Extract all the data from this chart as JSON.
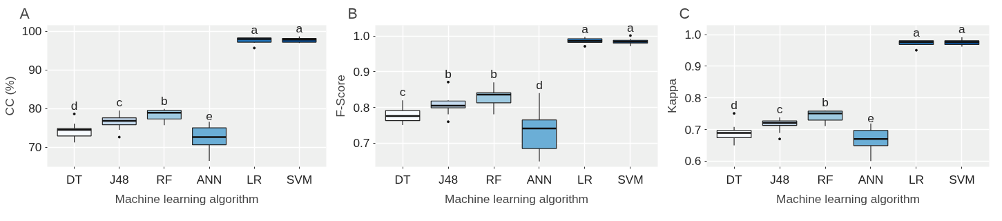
{
  "chart_data": [
    {
      "type": "box",
      "title": "A",
      "xlabel": "Machine learning algorithm",
      "ylabel": "CC (%)",
      "categories": [
        "DT",
        "J48",
        "RF",
        "ANN",
        "LR",
        "SVM"
      ],
      "colors": [
        "#f7fbff",
        "#c6dbef",
        "#9ecae1",
        "#6baed6",
        "#2171b5",
        "#08519c"
      ],
      "boxes": [
        {
          "low": 71.2,
          "q1": 72.9,
          "median": 74.5,
          "q3": 74.8,
          "high": 76.1,
          "outliers": [
            78.6
          ]
        },
        {
          "low": 74.5,
          "q1": 75.8,
          "median": 76.8,
          "q3": 77.6,
          "high": 79.5,
          "outliers": [
            72.6
          ]
        },
        {
          "low": 75.7,
          "q1": 77.3,
          "median": 78.9,
          "q3": 79.5,
          "high": 79.9
        },
        {
          "low": 66.4,
          "q1": 70.6,
          "median": 72.6,
          "q3": 75.0,
          "high": 76.6
        },
        {
          "low": 97.1,
          "q1": 97.2,
          "median": 98.0,
          "q3": 98.3,
          "high": 98.3,
          "outliers": [
            95.7
          ]
        },
        {
          "low": 97.0,
          "q1": 97.2,
          "median": 97.9,
          "q3": 98.2,
          "high": 98.7
        }
      ],
      "ylim": [
        64.9,
        101.6
      ],
      "yticks": [
        70,
        80,
        90,
        100
      ],
      "grid": true,
      "legend": false,
      "annotations": [
        "d",
        "c",
        "b",
        "e",
        "a",
        "a"
      ]
    },
    {
      "type": "box",
      "title": "B",
      "xlabel": "Machine learning algorithm",
      "ylabel": "F-Score",
      "categories": [
        "DT",
        "J48",
        "RF",
        "ANN",
        "LR",
        "SVM"
      ],
      "colors": [
        "#f7fbff",
        "#c6dbef",
        "#9ecae1",
        "#6baed6",
        "#2171b5",
        "#08519c"
      ],
      "boxes": [
        {
          "low": 0.751,
          "q1": 0.763,
          "median": 0.776,
          "q3": 0.791,
          "high": 0.82
        },
        {
          "low": 0.781,
          "q1": 0.799,
          "median": 0.805,
          "q3": 0.818,
          "high": 0.82,
          "outliers": [
            0.871,
            0.76
          ]
        },
        {
          "low": 0.781,
          "q1": 0.813,
          "median": 0.836,
          "q3": 0.841,
          "high": 0.87
        },
        {
          "low": 0.649,
          "q1": 0.685,
          "median": 0.741,
          "q3": 0.765,
          "high": 0.84
        },
        {
          "low": 0.981,
          "q1": 0.982,
          "median": 0.986,
          "q3": 0.992,
          "high": 0.997,
          "outliers": [
            0.971
          ]
        },
        {
          "low": 0.971,
          "q1": 0.98,
          "median": 0.984,
          "q3": 0.988,
          "high": 0.992,
          "outliers": [
            1.001
          ]
        }
      ],
      "ylim": [
        0.634,
        1.03
      ],
      "yticks": [
        {
          "value": 0.7,
          "label": "0.7"
        },
        {
          "value": 0.8,
          "label": "0.8"
        },
        {
          "value": 0.9,
          "label": "0.9"
        },
        {
          "value": 1,
          "label": "1.0"
        }
      ],
      "grid": true,
      "legend": false,
      "annotations": [
        "c",
        "b",
        "b",
        "d",
        "a",
        "a"
      ]
    },
    {
      "type": "box",
      "title": "C",
      "xlabel": "Machine learning algorithm",
      "ylabel": "Kappa",
      "categories": [
        "DT",
        "J48",
        "RF",
        "ANN",
        "LR",
        "SVM"
      ],
      "colors": [
        "#f7fbff",
        "#c6dbef",
        "#9ecae1",
        "#6baed6",
        "#2171b5",
        "#08519c"
      ],
      "boxes": [
        {
          "low": 0.65,
          "q1": 0.674,
          "median": 0.689,
          "q3": 0.697,
          "high": 0.708,
          "outliers": [
            0.751
          ]
        },
        {
          "low": 0.689,
          "q1": 0.713,
          "median": 0.721,
          "q3": 0.727,
          "high": 0.738,
          "outliers": [
            0.67
          ]
        },
        {
          "low": 0.711,
          "q1": 0.73,
          "median": 0.751,
          "q3": 0.758,
          "high": 0.76
        },
        {
          "low": 0.6,
          "q1": 0.649,
          "median": 0.67,
          "q3": 0.697,
          "high": 0.719
        },
        {
          "low": 0.969,
          "q1": 0.969,
          "median": 0.977,
          "q3": 0.981,
          "high": 0.981,
          "outliers": [
            0.951
          ]
        },
        {
          "low": 0.962,
          "q1": 0.969,
          "median": 0.977,
          "q3": 0.981,
          "high": 0.992
        }
      ],
      "ylim": [
        0.582,
        1.03
      ],
      "yticks": [
        {
          "value": 0.6,
          "label": "0.6"
        },
        {
          "value": 0.7,
          "label": "0.7"
        },
        {
          "value": 0.8,
          "label": "0.8"
        },
        {
          "value": 0.9,
          "label": "0.9"
        },
        {
          "value": 1,
          "label": "1.0"
        }
      ],
      "grid": true,
      "legend": false,
      "annotations": [
        "d",
        "c",
        "b",
        "e",
        "a",
        "a"
      ]
    }
  ]
}
